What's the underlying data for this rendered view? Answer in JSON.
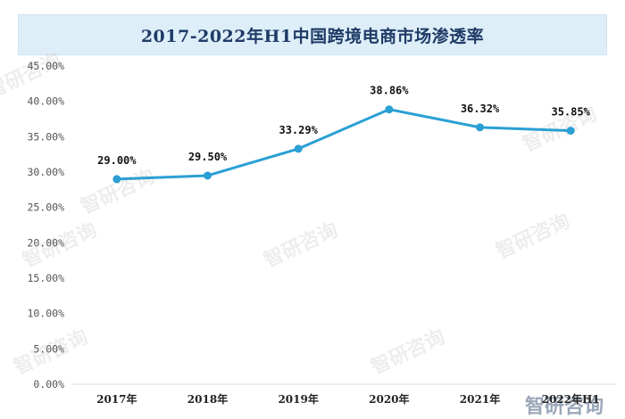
{
  "chart_data": {
    "type": "line",
    "title": "2017-2022年H1中国跨境电商市场渗透率",
    "categories": [
      "2017年",
      "2018年",
      "2019年",
      "2020年",
      "2021年",
      "2022年H1"
    ],
    "series": [
      {
        "values": [
          29.0,
          29.5,
          33.29,
          38.86,
          36.32,
          35.85
        ],
        "labels": [
          "29.00%",
          "29.50%",
          "33.29%",
          "38.86%",
          "36.32%",
          "35.85%"
        ],
        "color": "#2aa0d4"
      }
    ],
    "ylim": [
      0,
      45
    ],
    "yticks": [
      "0.00%",
      "5.00%",
      "10.00%",
      "15.00%",
      "20.00%",
      "25.00%",
      "30.00%",
      "35.00%",
      "40.00%",
      "45.00%"
    ],
    "grid": false,
    "legend": "none"
  },
  "watermark": {
    "text": "智研咨询"
  },
  "colors": {
    "line": "#2aa0d4",
    "title_bg": "#deeef8",
    "title_text": "#1f3b66"
  }
}
